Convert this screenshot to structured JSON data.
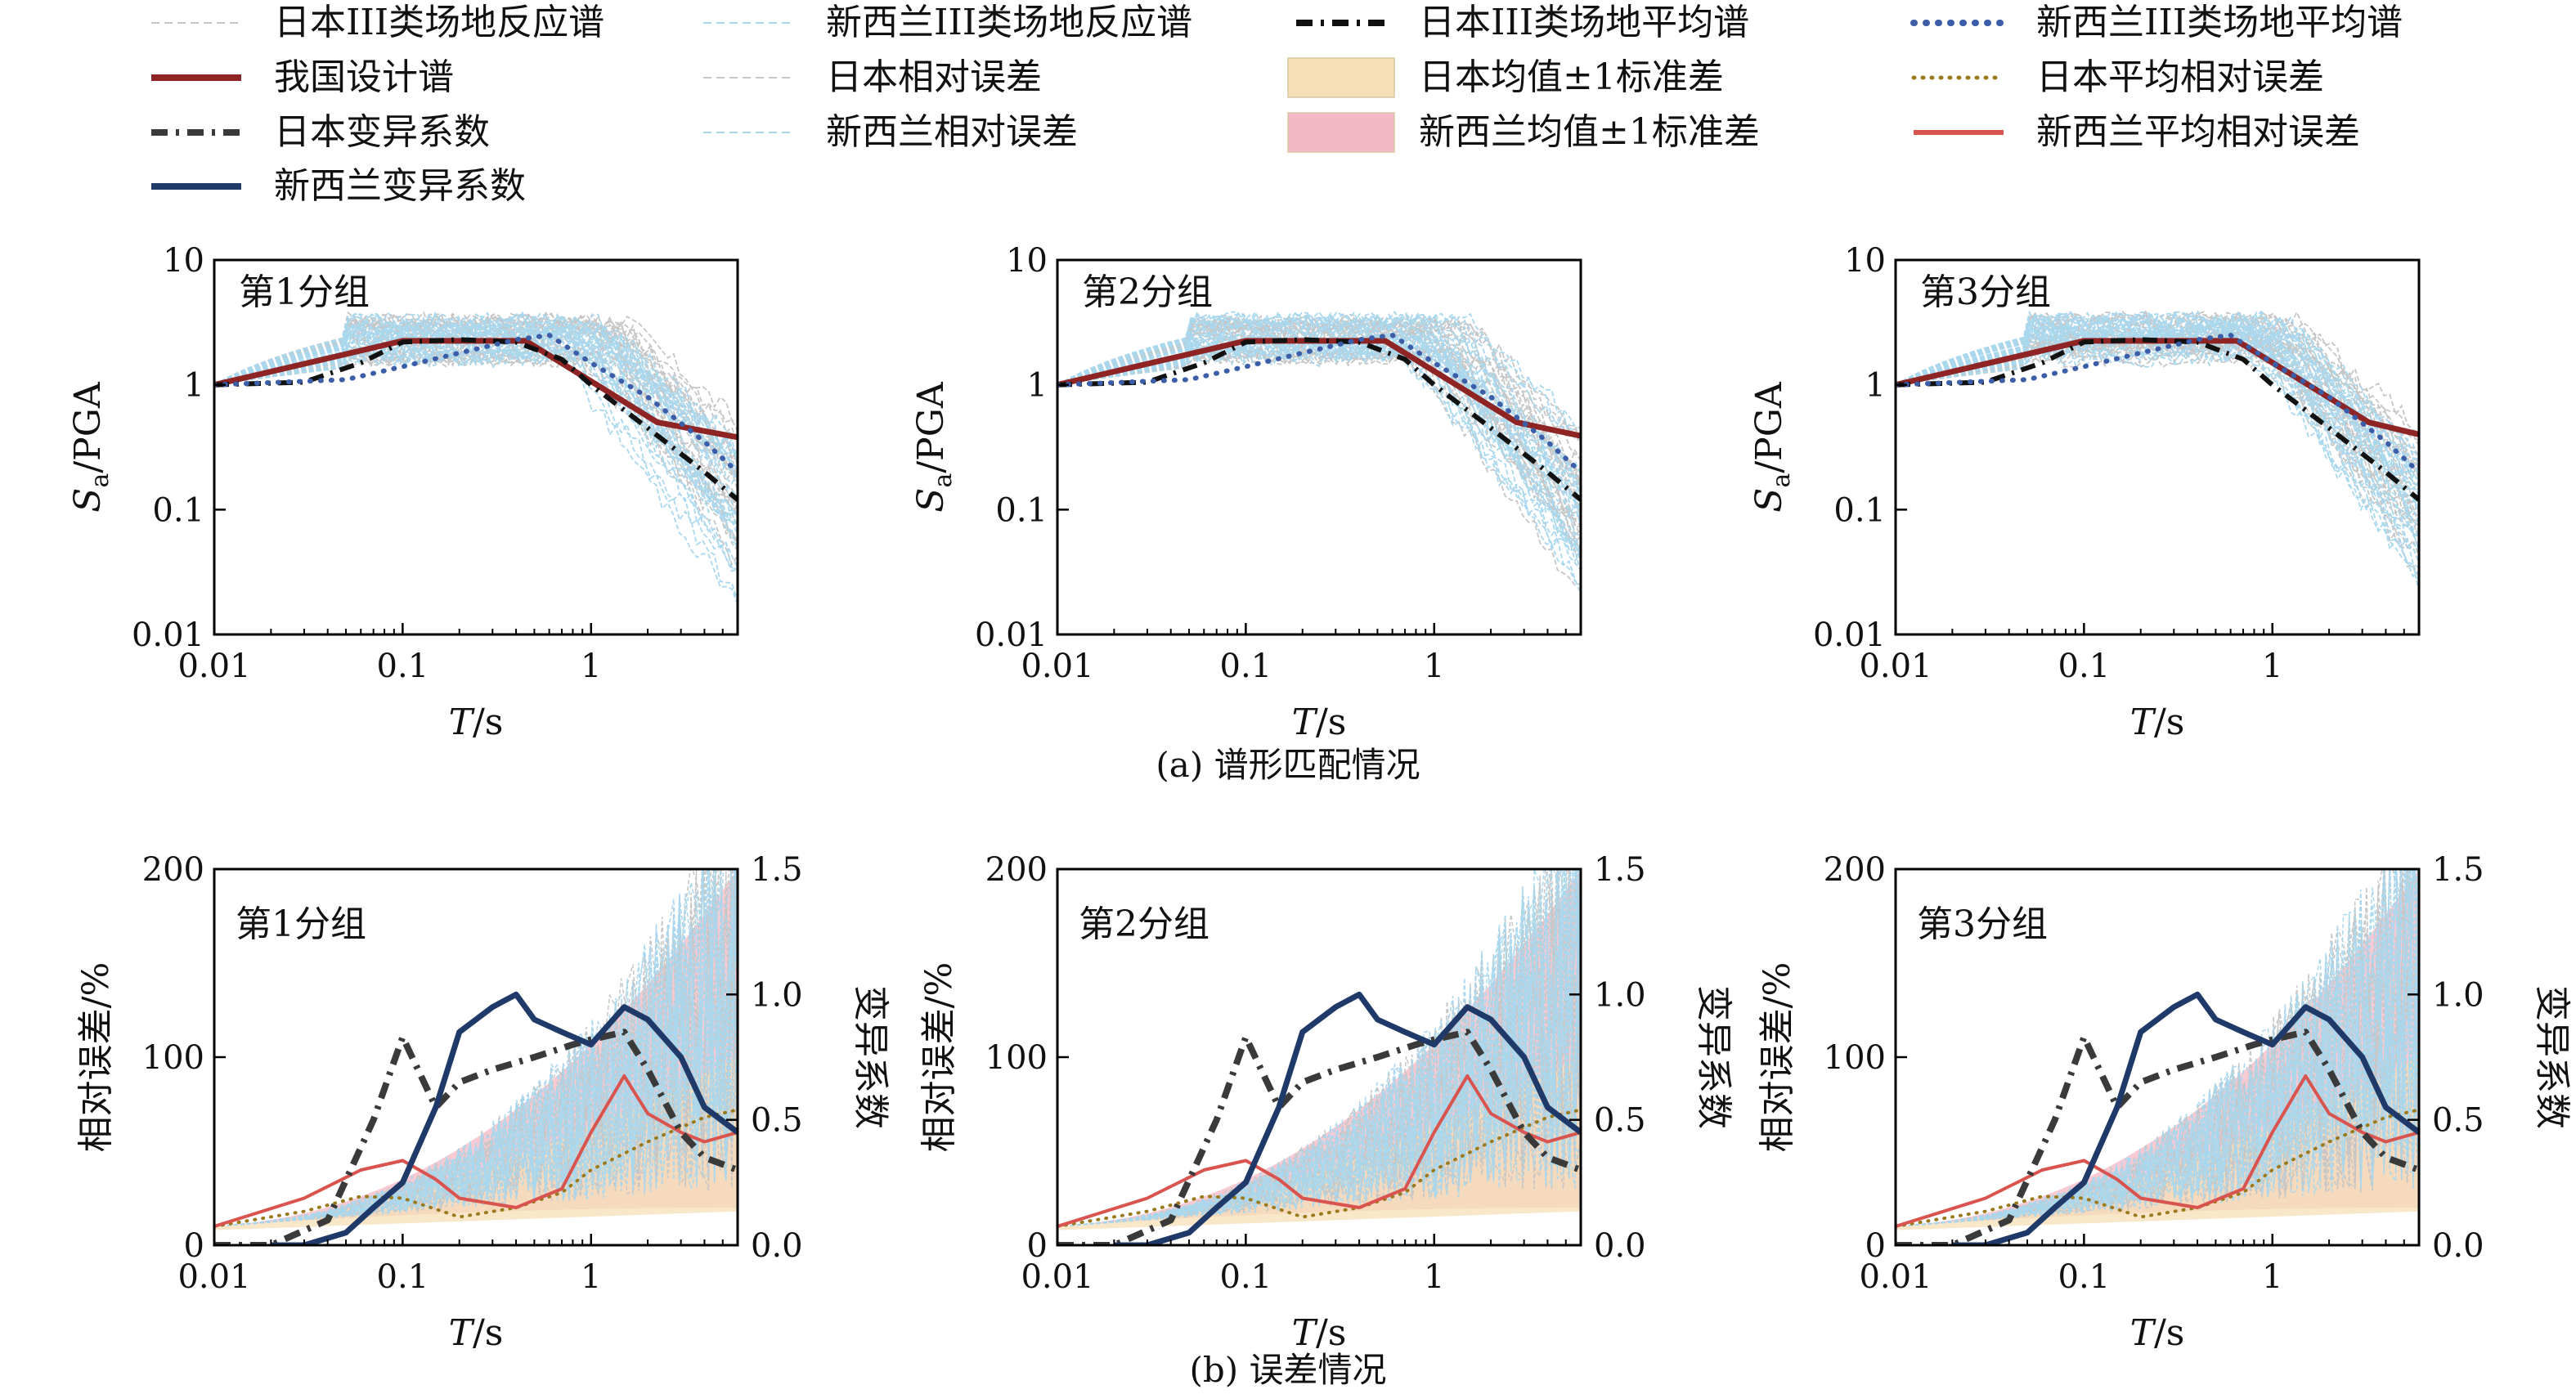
{
  "legend": {
    "items": [
      {
        "label": "日本III类场地反应谱",
        "color": "#c6c6c6",
        "style": "thin-dash"
      },
      {
        "label": "新西兰III类场地反应谱",
        "color": "#a9d8ee",
        "style": "thin-dash"
      },
      {
        "label": "日本III类场地平均谱",
        "color": "#111111",
        "style": "dashdot-bold"
      },
      {
        "label": "新西兰III类场地平均谱",
        "color": "#3c5ea8",
        "style": "dot-bold"
      },
      {
        "label": "我国设计谱",
        "color": "#8f2424",
        "style": "solid-bold"
      },
      {
        "label": "日本相对误差",
        "color": "#c6c6c6",
        "style": "thin-dash"
      },
      {
        "label": "日本均值±1标准差",
        "color": "#f6dfb6",
        "style": "patch"
      },
      {
        "label": "日本平均相对误差",
        "color": "#9b7a1e",
        "style": "dot"
      },
      {
        "label": "日本变异系数",
        "color": "#3a3a3a",
        "style": "dashdot-bold"
      },
      {
        "label": "新西兰相对误差",
        "color": "#a9d8ee",
        "style": "thin-dash"
      },
      {
        "label": "新西兰均值±1标准差",
        "color": "#f4b8c6",
        "style": "patch"
      },
      {
        "label": "新西兰平均相对误差",
        "color": "#d9534f",
        "style": "solid"
      },
      {
        "label": "新西兰变异系数",
        "color": "#1f3a68",
        "style": "solid-bold"
      }
    ]
  },
  "captions": {
    "a": "(a) 谱形匹配情况",
    "b": "(b) 误差情况"
  },
  "chart_data": [
    {
      "type": "line",
      "panel": "a1",
      "annotation": "第1分组",
      "xscale": "log",
      "yscale": "log",
      "xlim": [
        0.01,
        6
      ],
      "ylim": [
        0.01,
        10
      ],
      "xticks": [
        "0.01",
        "0.1",
        "1"
      ],
      "yticks": [
        "0.01",
        "0.1",
        "1",
        "10"
      ],
      "xlabel": "T/s",
      "ylabel_main": "S",
      "ylabel_sub": "a",
      "ylabel_rest": "/PGA",
      "series": [
        {
          "name": "我国设计谱",
          "x": [
            0.01,
            0.1,
            0.45,
            2.25,
            6
          ],
          "y": [
            1.0,
            2.25,
            2.25,
            0.5,
            0.38
          ]
        },
        {
          "name": "日本III类场地平均谱",
          "x": [
            0.01,
            0.03,
            0.06,
            0.1,
            0.2,
            0.4,
            0.7,
            1.0,
            2.0,
            4.0,
            6.0
          ],
          "y": [
            1.0,
            1.05,
            1.5,
            2.2,
            2.3,
            2.2,
            1.6,
            1.0,
            0.45,
            0.2,
            0.12
          ]
        },
        {
          "name": "新西兰III类场地平均谱",
          "x": [
            0.01,
            0.05,
            0.1,
            0.2,
            0.4,
            0.6,
            1.0,
            2.0,
            4.0,
            6.0
          ],
          "y": [
            1.0,
            1.1,
            1.4,
            1.8,
            2.3,
            2.5,
            1.5,
            0.8,
            0.35,
            0.2
          ]
        }
      ]
    },
    {
      "type": "line",
      "panel": "a2",
      "annotation": "第2分组",
      "xscale": "log",
      "yscale": "log",
      "xlim": [
        0.01,
        6
      ],
      "ylim": [
        0.01,
        10
      ],
      "xticks": [
        "0.01",
        "0.1",
        "1"
      ],
      "yticks": [
        "0.01",
        "0.1",
        "1",
        "10"
      ],
      "xlabel": "T/s",
      "ylabel_main": "S",
      "ylabel_sub": "a",
      "ylabel_rest": "/PGA",
      "series": [
        {
          "name": "我国设计谱",
          "x": [
            0.01,
            0.1,
            0.55,
            2.75,
            6
          ],
          "y": [
            1.0,
            2.25,
            2.25,
            0.5,
            0.39
          ]
        },
        {
          "name": "日本III类场地平均谱",
          "x": [
            0.01,
            0.03,
            0.06,
            0.1,
            0.2,
            0.4,
            0.7,
            1.0,
            2.0,
            4.0,
            6.0
          ],
          "y": [
            1.0,
            1.05,
            1.5,
            2.2,
            2.3,
            2.2,
            1.6,
            1.0,
            0.45,
            0.2,
            0.12
          ]
        },
        {
          "name": "新西兰III类场地平均谱",
          "x": [
            0.01,
            0.05,
            0.1,
            0.2,
            0.4,
            0.6,
            1.0,
            2.0,
            4.0,
            6.0
          ],
          "y": [
            1.0,
            1.1,
            1.4,
            1.8,
            2.3,
            2.5,
            1.5,
            0.8,
            0.35,
            0.2
          ]
        }
      ]
    },
    {
      "type": "line",
      "panel": "a3",
      "annotation": "第3分组",
      "xscale": "log",
      "yscale": "log",
      "xlim": [
        0.01,
        6
      ],
      "ylim": [
        0.01,
        10
      ],
      "xticks": [
        "0.01",
        "0.1",
        "1"
      ],
      "yticks": [
        "0.01",
        "0.1",
        "1",
        "10"
      ],
      "xlabel": "T/s",
      "ylabel_main": "S",
      "ylabel_sub": "a",
      "ylabel_rest": "/PGA",
      "series": [
        {
          "name": "我国设计谱",
          "x": [
            0.01,
            0.1,
            0.65,
            3.25,
            6
          ],
          "y": [
            1.0,
            2.25,
            2.25,
            0.5,
            0.4
          ]
        },
        {
          "name": "日本III类场地平均谱",
          "x": [
            0.01,
            0.03,
            0.06,
            0.1,
            0.2,
            0.4,
            0.7,
            1.0,
            2.0,
            4.0,
            6.0
          ],
          "y": [
            1.0,
            1.05,
            1.5,
            2.2,
            2.3,
            2.2,
            1.6,
            1.0,
            0.45,
            0.2,
            0.12
          ]
        },
        {
          "name": "新西兰III类场地平均谱",
          "x": [
            0.01,
            0.05,
            0.1,
            0.2,
            0.4,
            0.6,
            1.0,
            2.0,
            4.0,
            6.0
          ],
          "y": [
            1.0,
            1.1,
            1.4,
            1.8,
            2.3,
            2.5,
            1.5,
            0.8,
            0.35,
            0.2
          ]
        }
      ]
    },
    {
      "type": "line",
      "panel": "b1",
      "annotation": "第1分组",
      "xscale": "log",
      "xlim": [
        0.01,
        6
      ],
      "ylim": [
        0,
        200
      ],
      "y2lim": [
        0,
        1.5
      ],
      "xticks": [
        "0.01",
        "0.1",
        "1"
      ],
      "yticks": [
        "0",
        "100",
        "200"
      ],
      "y2ticks": [
        "0.0",
        "0.5",
        "1.0",
        "1.5"
      ],
      "xlabel": "T/s",
      "ylabel": "相对误差/%",
      "y2label": "变异系数",
      "series": [
        {
          "name": "日本平均相对误差",
          "x": [
            0.01,
            0.03,
            0.06,
            0.1,
            0.2,
            0.4,
            0.7,
            1.0,
            2.0,
            4.0,
            6.0
          ],
          "y": [
            10,
            18,
            26,
            25,
            15,
            20,
            28,
            40,
            55,
            68,
            72
          ]
        },
        {
          "name": "新西兰平均相对误差",
          "x": [
            0.01,
            0.03,
            0.06,
            0.1,
            0.15,
            0.2,
            0.4,
            0.7,
            1.0,
            1.5,
            2.0,
            3.0,
            4.0,
            6.0
          ],
          "y": [
            10,
            25,
            40,
            45,
            35,
            25,
            20,
            30,
            60,
            90,
            70,
            60,
            55,
            60
          ]
        },
        {
          "name": "日本变异系数",
          "axis": "y2",
          "x": [
            0.01,
            0.02,
            0.04,
            0.07,
            0.1,
            0.15,
            0.2,
            0.3,
            0.5,
            0.8,
            1.0,
            1.5,
            2.0,
            3.0,
            4.0,
            6.0
          ],
          "y": [
            0.0,
            0.0,
            0.1,
            0.5,
            0.83,
            0.55,
            0.65,
            0.7,
            0.75,
            0.8,
            0.82,
            0.85,
            0.7,
            0.45,
            0.35,
            0.3
          ]
        },
        {
          "name": "新西兰变异系数",
          "axis": "y2",
          "x": [
            0.02,
            0.03,
            0.05,
            0.07,
            0.1,
            0.15,
            0.2,
            0.3,
            0.4,
            0.5,
            0.7,
            1.0,
            1.5,
            2.0,
            3.0,
            4.0,
            6.0
          ],
          "y": [
            0.0,
            0.0,
            0.05,
            0.15,
            0.25,
            0.55,
            0.85,
            0.95,
            1.0,
            0.9,
            0.85,
            0.8,
            0.95,
            0.9,
            0.75,
            0.55,
            0.45
          ]
        }
      ]
    },
    {
      "type": "line",
      "panel": "b2",
      "annotation": "第2分组",
      "xscale": "log",
      "xlim": [
        0.01,
        6
      ],
      "ylim": [
        0,
        200
      ],
      "y2lim": [
        0,
        1.5
      ],
      "xticks": [
        "0.01",
        "0.1",
        "1"
      ],
      "yticks": [
        "0",
        "100",
        "200"
      ],
      "y2ticks": [
        "0.0",
        "0.5",
        "1.0",
        "1.5"
      ],
      "xlabel": "T/s",
      "ylabel": "相对误差/%",
      "y2label": "变异系数",
      "series": [
        {
          "name": "日本平均相对误差",
          "x": [
            0.01,
            0.03,
            0.06,
            0.1,
            0.2,
            0.4,
            0.7,
            1.0,
            2.0,
            4.0,
            6.0
          ],
          "y": [
            10,
            18,
            26,
            25,
            15,
            20,
            28,
            40,
            55,
            68,
            72
          ]
        },
        {
          "name": "新西兰平均相对误差",
          "x": [
            0.01,
            0.03,
            0.06,
            0.1,
            0.15,
            0.2,
            0.4,
            0.7,
            1.0,
            1.5,
            2.0,
            3.0,
            4.0,
            6.0
          ],
          "y": [
            10,
            25,
            40,
            45,
            35,
            25,
            20,
            30,
            60,
            90,
            70,
            60,
            55,
            60
          ]
        },
        {
          "name": "日本变异系数",
          "axis": "y2",
          "x": [
            0.01,
            0.02,
            0.04,
            0.07,
            0.1,
            0.15,
            0.2,
            0.3,
            0.5,
            0.8,
            1.0,
            1.5,
            2.0,
            3.0,
            4.0,
            6.0
          ],
          "y": [
            0.0,
            0.0,
            0.1,
            0.5,
            0.83,
            0.55,
            0.65,
            0.7,
            0.75,
            0.8,
            0.82,
            0.85,
            0.7,
            0.45,
            0.35,
            0.3
          ]
        },
        {
          "name": "新西兰变异系数",
          "axis": "y2",
          "x": [
            0.02,
            0.03,
            0.05,
            0.07,
            0.1,
            0.15,
            0.2,
            0.3,
            0.4,
            0.5,
            0.7,
            1.0,
            1.5,
            2.0,
            3.0,
            4.0,
            6.0
          ],
          "y": [
            0.0,
            0.0,
            0.05,
            0.15,
            0.25,
            0.55,
            0.85,
            0.95,
            1.0,
            0.9,
            0.85,
            0.8,
            0.95,
            0.9,
            0.75,
            0.55,
            0.45
          ]
        }
      ]
    },
    {
      "type": "line",
      "panel": "b3",
      "annotation": "第3分组",
      "xscale": "log",
      "xlim": [
        0.01,
        6
      ],
      "ylim": [
        0,
        200
      ],
      "y2lim": [
        0,
        1.5
      ],
      "xticks": [
        "0.01",
        "0.1",
        "1"
      ],
      "yticks": [
        "0",
        "100",
        "200"
      ],
      "y2ticks": [
        "0.0",
        "0.5",
        "1.0",
        "1.5"
      ],
      "xlabel": "T/s",
      "ylabel": "相对误差/%",
      "y2label": "变异系数",
      "series": [
        {
          "name": "日本平均相对误差",
          "x": [
            0.01,
            0.03,
            0.06,
            0.1,
            0.2,
            0.4,
            0.7,
            1.0,
            2.0,
            4.0,
            6.0
          ],
          "y": [
            10,
            18,
            26,
            25,
            15,
            20,
            28,
            40,
            55,
            68,
            72
          ]
        },
        {
          "name": "新西兰平均相对误差",
          "x": [
            0.01,
            0.03,
            0.06,
            0.1,
            0.15,
            0.2,
            0.4,
            0.7,
            1.0,
            1.5,
            2.0,
            3.0,
            4.0,
            6.0
          ],
          "y": [
            10,
            25,
            40,
            45,
            35,
            25,
            20,
            30,
            60,
            90,
            70,
            60,
            55,
            60
          ]
        },
        {
          "name": "日本变异系数",
          "axis": "y2",
          "x": [
            0.01,
            0.02,
            0.04,
            0.07,
            0.1,
            0.15,
            0.2,
            0.3,
            0.5,
            0.8,
            1.0,
            1.5,
            2.0,
            3.0,
            4.0,
            6.0
          ],
          "y": [
            0.0,
            0.0,
            0.1,
            0.5,
            0.83,
            0.55,
            0.65,
            0.7,
            0.75,
            0.8,
            0.82,
            0.85,
            0.7,
            0.45,
            0.35,
            0.3
          ]
        },
        {
          "name": "新西兰变异系数",
          "axis": "y2",
          "x": [
            0.02,
            0.03,
            0.05,
            0.07,
            0.1,
            0.15,
            0.2,
            0.3,
            0.4,
            0.5,
            0.7,
            1.0,
            1.5,
            2.0,
            3.0,
            4.0,
            6.0
          ],
          "y": [
            0.0,
            0.0,
            0.05,
            0.15,
            0.25,
            0.55,
            0.85,
            0.95,
            1.0,
            0.9,
            0.85,
            0.8,
            0.95,
            0.9,
            0.75,
            0.55,
            0.45
          ]
        }
      ]
    }
  ]
}
